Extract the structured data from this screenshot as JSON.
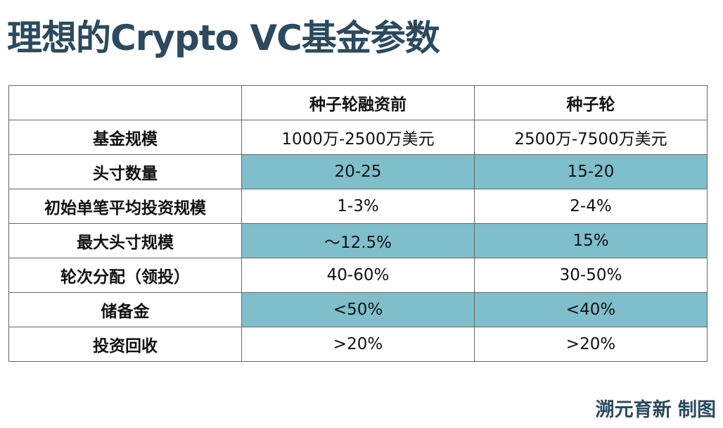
{
  "header": {
    "title": "理想的Crypto VC基金参数"
  },
  "table": {
    "columns": [
      "",
      "种子轮融资前",
      "种子轮"
    ],
    "rows": [
      [
        "基金规模",
        "1000万-2500万美元",
        "2500万-7500万美元"
      ],
      [
        "头寸数量",
        "20-25",
        "15-20"
      ],
      [
        "初始单笔平均投资规模",
        "1-3%",
        "2-4%"
      ],
      [
        "最大头寸规模",
        "～12.5%",
        "15%"
      ],
      [
        "轮次分配（领投）",
        "40-60%",
        "30-50%"
      ],
      [
        "储备金",
        "<50%",
        "<40%"
      ],
      [
        "投资回收",
        ">20%",
        ">20%"
      ]
    ]
  },
  "footer": {
    "credit": "溯元育新 制图"
  }
}
